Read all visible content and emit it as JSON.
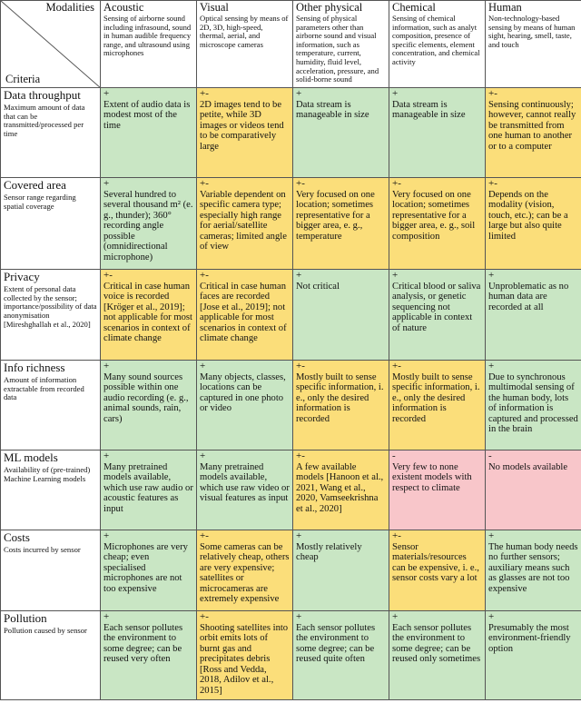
{
  "header": {
    "corner_modalities": "Modalities",
    "corner_criteria": "Criteria",
    "columns": [
      {
        "title": "Acoustic",
        "desc": "Sensing of airborne sound including infrasound, sound in human audible frequency range, and ultrasound using microphones"
      },
      {
        "title": "Visual",
        "desc": "Optical sensing by means of 2D, 3D, high-speed, thermal, aerial, and microscope cameras"
      },
      {
        "title": "Other physical",
        "desc": "Sensing of physical parameters other than airborne sound and visual information, such as temperature, current, humidity, fluid level, acceleration, pressure, and solid-borne sound"
      },
      {
        "title": "Chemical",
        "desc": "Sensing of chemical information, such as analyt composition, presence of specific elements, element concentration, and chemical activity"
      },
      {
        "title": "Human",
        "desc": "Non-technology-based sensing by means of human sight, hearing, smell, taste, and touch"
      }
    ]
  },
  "colors": {
    "positive": "#c9e6c4",
    "mixed": "#fbde7a",
    "negative": "#f8c6ca"
  },
  "rows": [
    {
      "title": "Data throughput",
      "desc": "Maximum amount of data that can be transmitted/processed per time",
      "cells": [
        {
          "rating": "+",
          "text": "Extent of audio data is modest most of the time"
        },
        {
          "rating": "+-",
          "text": "2D images tend to be petite, while 3D images or videos tend to be comparatively large"
        },
        {
          "rating": "+",
          "text": "Data stream is manageable in size"
        },
        {
          "rating": "+",
          "text": "Data stream is manageable in size"
        },
        {
          "rating": "+-",
          "text": "Sensing continuously; however, cannot really be transmitted from one human to another or to a computer"
        }
      ]
    },
    {
      "title": "Covered area",
      "desc": "Sensor range regarding spatial coverage",
      "cells": [
        {
          "rating": "+",
          "text": "Several hundred to several thousand m² (e. g., thunder); 360° recording angle possible (omnidirectional microphone)"
        },
        {
          "rating": "+-",
          "text": "Variable dependent on specific camera type; especially high range for aerial/satellite cameras; limited angle of view"
        },
        {
          "rating": "+-",
          "text": "Very focused on one location; sometimes representative for a bigger area, e. g., temperature"
        },
        {
          "rating": "+-",
          "text": "Very focused on one location; sometimes representative for a bigger area, e. g., soil composition"
        },
        {
          "rating": "+-",
          "text": "Depends on the modality (vision, touch, etc.); can be a large but also quite limited"
        }
      ]
    },
    {
      "title": "Privacy",
      "desc": "Extent of personal data collected by the sensor; importance/possibility of data anonymisation [Mireshghallah et al., 2020]",
      "cells": [
        {
          "rating": "+-",
          "text": "Critical in case human voice is recorded [Kröger et al., 2019]; not applicable for most scenarios in context of climate change"
        },
        {
          "rating": "+-",
          "text": "Critical in case human faces are recorded [Jose et al., 2019]; not applicable for most scenarios in context of climate change"
        },
        {
          "rating": "+",
          "text": "Not critical"
        },
        {
          "rating": "+",
          "text": "Critical blood or saliva analysis, or genetic sequencing not applicable in context of nature"
        },
        {
          "rating": "+",
          "text": "Unproblematic as no human data are recorded at all"
        }
      ]
    },
    {
      "title": "Info richness",
      "desc": "Amount of information extractable from recorded data",
      "cells": [
        {
          "rating": "+",
          "text": "Many sound sources possible within one audio recording (e. g., animal sounds, rain, cars)"
        },
        {
          "rating": "+",
          "text": "Many objects, classes, locations can be captured in one photo or video"
        },
        {
          "rating": "+-",
          "text": "Mostly built to sense specific information, i. e., only the desired information is recorded"
        },
        {
          "rating": "+-",
          "text": "Mostly built to sense specific information, i. e., only the desired information is recorded"
        },
        {
          "rating": "+",
          "text": "Due to synchronous multimodal sensing of the human body, lots of information is captured and processed in the brain"
        }
      ]
    },
    {
      "title": "ML models",
      "desc": "Availability of (pre-trained) Machine Learning models",
      "cells": [
        {
          "rating": "+",
          "text": "Many pretrained models available, which use raw audio or acoustic features as input"
        },
        {
          "rating": "+",
          "text": "Many pretrained models available, which use raw video or visual features as input"
        },
        {
          "rating": "+-",
          "text": "A few available models [Hanoon et al., 2021, Wang et al., 2020, Vamseekrishna et al., 2020]"
        },
        {
          "rating": "-",
          "text": "Very few to none existent models with respect to climate"
        },
        {
          "rating": "-",
          "text": "No models available"
        }
      ]
    },
    {
      "title": "Costs",
      "desc": "Costs incurred by sensor",
      "cells": [
        {
          "rating": "+",
          "text": "Microphones are very cheap; even specialised microphones are not too expensive"
        },
        {
          "rating": "+-",
          "text": "Some cameras can be relatively cheap, others are very expensive; satellites or microcameras are extremely expensive"
        },
        {
          "rating": "+",
          "text": "Mostly relatively cheap"
        },
        {
          "rating": "+-",
          "text": "Sensor materials/resources can be expensive, i. e., sensor costs vary a lot"
        },
        {
          "rating": "+",
          "text": "The human body needs no further sensors; auxiliary means such as glasses are not too expensive"
        }
      ]
    },
    {
      "title": "Pollution",
      "desc": "Pollution caused by sensor",
      "cells": [
        {
          "rating": "+",
          "text": "Each sensor pollutes the environment to some degree; can be reused very often"
        },
        {
          "rating": "+-",
          "text": "Shooting satellites into orbit emits lots of burnt gas and precipitates debris [Ross and Vedda, 2018, Adilov et al., 2015]"
        },
        {
          "rating": "+",
          "text": "Each sensor pollutes the environment to some degree; can be reused quite often"
        },
        {
          "rating": "+",
          "text": "Each sensor pollutes the environment to some degree; can be reused only sometimes"
        },
        {
          "rating": "+",
          "text": "Presumably the most environment-friendly option"
        }
      ]
    }
  ]
}
